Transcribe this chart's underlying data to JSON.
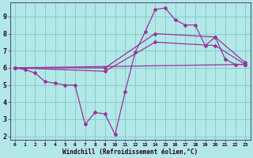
{
  "xlabel": "Windchill (Refroidissement éolien,°C)",
  "background_color": "#b3e8e8",
  "grid_color": "#88cccc",
  "line_color": "#993399",
  "xlim": [
    -0.5,
    23.5
  ],
  "ylim": [
    1.8,
    9.8
  ],
  "xticks": [
    0,
    1,
    2,
    3,
    4,
    5,
    6,
    7,
    8,
    9,
    10,
    11,
    12,
    13,
    14,
    15,
    16,
    17,
    18,
    19,
    20,
    21,
    22,
    23
  ],
  "yticks": [
    2,
    3,
    4,
    5,
    6,
    7,
    8,
    9
  ],
  "line1_x": [
    0,
    1,
    2,
    3,
    4,
    5,
    6,
    7,
    8,
    9,
    10,
    11,
    12,
    13,
    14,
    15,
    16,
    17,
    18,
    19,
    20,
    21,
    22,
    23
  ],
  "line1_y": [
    6.0,
    5.9,
    5.7,
    5.2,
    5.1,
    5.0,
    5.0,
    2.7,
    3.4,
    3.3,
    2.1,
    4.6,
    6.9,
    8.1,
    9.4,
    9.5,
    8.8,
    8.5,
    8.5,
    7.3,
    7.8,
    6.5,
    6.2,
    6.2
  ],
  "line2_x": [
    0,
    23
  ],
  "line2_y": [
    6.0,
    6.2
  ],
  "line3_x": [
    0,
    9,
    14,
    20,
    23
  ],
  "line3_y": [
    6.0,
    5.8,
    7.5,
    7.3,
    6.2
  ],
  "line4_x": [
    0,
    9,
    14,
    20,
    23
  ],
  "line4_y": [
    6.0,
    6.0,
    8.0,
    7.8,
    6.3
  ]
}
